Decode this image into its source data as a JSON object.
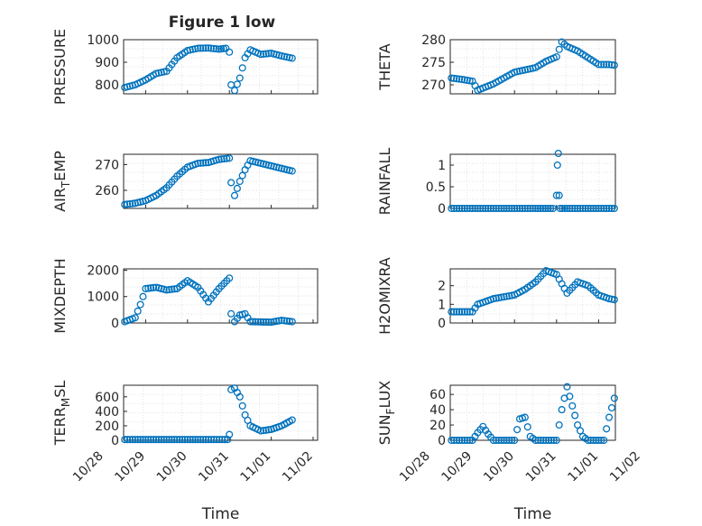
{
  "figure": {
    "title": "Figure 1 low",
    "marker_color": "#0072bd",
    "axis_color": "#262626",
    "grid_color": "#d9d9d9",
    "xlabel": "Time",
    "x_tick_labels": [
      "10/28",
      "10/29",
      "10/30",
      "10/31",
      "11/01",
      "11/02"
    ]
  },
  "chart_data": [
    {
      "type": "scatter",
      "title": "Figure 1 low",
      "ylabel": "PRESSURE",
      "xlim": [
        "10/28",
        "11/02"
      ],
      "ylim": [
        760,
        1000
      ],
      "yticks": [
        800,
        900,
        1000
      ],
      "grid": true,
      "x": [
        "10/28 12:00",
        "10/28 18:00",
        "10/29 00:00",
        "10/29 06:00",
        "10/29 12:00",
        "10/29 18:00",
        "10/30 00:00",
        "10/30 06:00",
        "10/30 12:00",
        "10/30 18:00",
        "10/30 22:00",
        "10/31 00:00",
        "10/31 01:00",
        "10/31 03:00",
        "10/31 06:00",
        "10/31 09:00",
        "10/31 12:00",
        "10/31 18:00",
        "11/01 00:00",
        "11/01 06:00",
        "11/01 12:00"
      ],
      "y": [
        788,
        800,
        822,
        850,
        860,
        920,
        952,
        962,
        963,
        958,
        962,
        945,
        800,
        775,
        830,
        920,
        955,
        935,
        940,
        928,
        918
      ]
    },
    {
      "type": "scatter",
      "ylabel": "THETA",
      "xlim": [
        "10/28",
        "11/02"
      ],
      "ylim": [
        268,
        280
      ],
      "yticks": [
        270,
        275,
        280
      ],
      "grid": true,
      "x": [
        "10/28 12:00",
        "10/28 18:00",
        "10/29 00:00",
        "10/29 03:00",
        "10/29 12:00",
        "10/30 00:00",
        "10/30 12:00",
        "10/30 18:00",
        "10/31 00:00",
        "10/31 03:00",
        "10/31 06:00",
        "10/31 12:00",
        "10/31 18:00",
        "11/01 00:00",
        "11/01 06:00",
        "11/01 12:00"
      ],
      "y": [
        271.5,
        271.2,
        270.8,
        268.8,
        270.2,
        272.8,
        273.8,
        275.2,
        276.2,
        279.5,
        278.5,
        277.5,
        276.0,
        274.5,
        274.5,
        274.2
      ]
    },
    {
      "type": "scatter",
      "ylabel": "AIR_TEMP",
      "ylabel_main": "AIR",
      "ylabel_sub": "T",
      "ylabel_rest": "EMP",
      "xlim": [
        "10/28",
        "11/02"
      ],
      "ylim": [
        253,
        274
      ],
      "yticks": [
        260,
        270
      ],
      "grid": true,
      "x": [
        "10/28 12:00",
        "10/28 18:00",
        "10/29 00:00",
        "10/29 06:00",
        "10/29 12:00",
        "10/29 18:00",
        "10/30 00:00",
        "10/30 06:00",
        "10/30 12:00",
        "10/30 18:00",
        "10/31 00:00",
        "10/31 01:00",
        "10/31 03:00",
        "10/31 06:00",
        "10/31 09:00",
        "10/31 12:00",
        "10/31 18:00",
        "11/01 00:00",
        "11/01 06:00",
        "11/01 12:00"
      ],
      "y": [
        254.5,
        255,
        256,
        258,
        261,
        265.5,
        269,
        270.5,
        270.8,
        272,
        272.5,
        263,
        258,
        263.5,
        268,
        271.5,
        270.5,
        269.5,
        268.5,
        267.5
      ]
    },
    {
      "type": "scatter",
      "ylabel": "RAINFALL",
      "xlim": [
        "10/28",
        "11/02"
      ],
      "ylim": [
        0,
        1.25
      ],
      "yticks": [
        0,
        0.5,
        1
      ],
      "ytick_labels": [
        "0",
        "0.5",
        "1"
      ],
      "grid": true,
      "x": [
        "10/28 12:00",
        "10/29 00:00",
        "10/29 12:00",
        "10/30 00:00",
        "10/30 12:00",
        "10/30 22:00",
        "10/31 00:00",
        "10/31 00:30",
        "10/31 01:00",
        "10/31 01:30",
        "10/31 02:00",
        "10/31 06:00",
        "11/01 00:00",
        "11/01 12:00"
      ],
      "y": [
        0,
        0,
        0,
        0,
        0,
        0,
        0.3,
        1.0,
        1.27,
        0.3,
        0,
        0,
        0,
        0
      ]
    },
    {
      "type": "scatter",
      "ylabel": "MIXDEPTH",
      "xlim": [
        "10/28",
        "11/02"
      ],
      "ylim": [
        0,
        2050
      ],
      "yticks": [
        0,
        1000,
        2000
      ],
      "grid": true,
      "x": [
        "10/28 12:00",
        "10/28 18:00",
        "10/28 21:00",
        "10/29 00:00",
        "10/29 06:00",
        "10/29 12:00",
        "10/29 18:00",
        "10/30 00:00",
        "10/30 06:00",
        "10/30 12:00",
        "10/30 18:00",
        "10/31 00:00",
        "10/31 01:00",
        "10/31 03:00",
        "10/31 06:00",
        "10/31 09:00",
        "10/31 12:00",
        "11/01 00:00",
        "11/01 06:00",
        "11/01 12:00"
      ],
      "y": [
        50,
        200,
        700,
        1300,
        1350,
        1250,
        1300,
        1600,
        1350,
        800,
        1300,
        1700,
        350,
        50,
        300,
        350,
        50,
        30,
        100,
        50
      ]
    },
    {
      "type": "scatter",
      "ylabel": "H2OMIXRA",
      "xlim": [
        "10/28",
        "11/02"
      ],
      "ylim": [
        0,
        2.9
      ],
      "yticks": [
        0,
        1,
        2
      ],
      "grid": true,
      "x": [
        "10/28 12:00",
        "10/28 18:00",
        "10/29 00:00",
        "10/29 03:00",
        "10/29 12:00",
        "10/30 00:00",
        "10/30 06:00",
        "10/30 12:00",
        "10/30 18:00",
        "10/31 00:00",
        "10/31 06:00",
        "10/31 12:00",
        "10/31 18:00",
        "11/01 00:00",
        "11/01 06:00",
        "11/01 12:00"
      ],
      "y": [
        0.6,
        0.6,
        0.6,
        1.0,
        1.3,
        1.5,
        1.8,
        2.2,
        2.8,
        2.6,
        1.6,
        2.2,
        2.0,
        1.5,
        1.3,
        1.2
      ]
    },
    {
      "type": "scatter",
      "ylabel": "TERR_MSL",
      "ylabel_main": "TERR",
      "ylabel_sub": "M",
      "ylabel_rest": "SL",
      "xlim": [
        "10/28",
        "11/02"
      ],
      "ylim": [
        0,
        760
      ],
      "yticks": [
        0,
        200,
        400,
        600
      ],
      "grid": true,
      "x": [
        "10/28 12:00",
        "10/29 00:00",
        "10/29 12:00",
        "10/30 00:00",
        "10/30 12:00",
        "10/30 23:00",
        "10/31 00:00",
        "10/31 01:00",
        "10/31 03:00",
        "10/31 06:00",
        "10/31 09:00",
        "10/31 12:00",
        "10/31 18:00",
        "11/01 00:00",
        "11/01 06:00",
        "11/01 12:00"
      ],
      "y": [
        10,
        10,
        10,
        10,
        10,
        10,
        80,
        700,
        720,
        600,
        350,
        200,
        130,
        150,
        200,
        280
      ]
    },
    {
      "type": "scatter",
      "ylabel": "SUN_FLUX",
      "ylabel_main": "SUN",
      "ylabel_sub": "F",
      "ylabel_rest": "LUX",
      "xlim": [
        "10/28",
        "11/02"
      ],
      "ylim": [
        0,
        72
      ],
      "yticks": [
        0,
        20,
        40,
        60
      ],
      "grid": true,
      "x": [
        "10/28 12:00",
        "10/29 00:00",
        "10/29 03:00",
        "10/29 06:00",
        "10/29 09:00",
        "10/29 12:00",
        "10/29 18:00",
        "10/30 00:00",
        "10/30 03:00",
        "10/30 06:00",
        "10/30 09:00",
        "10/30 12:00",
        "10/30 18:00",
        "10/31 00:00",
        "10/31 03:00",
        "10/31 06:00",
        "10/31 09:00",
        "10/31 12:00",
        "10/31 15:00",
        "10/31 18:00",
        "11/01 00:00",
        "11/01 03:00",
        "11/01 06:00",
        "11/01 09:00",
        "11/01 12:00"
      ],
      "y": [
        0,
        0,
        10,
        18,
        8,
        0,
        0,
        0,
        28,
        30,
        5,
        0,
        0,
        0,
        40,
        70,
        45,
        20,
        5,
        0,
        0,
        0,
        30,
        55,
        63
      ]
    }
  ]
}
